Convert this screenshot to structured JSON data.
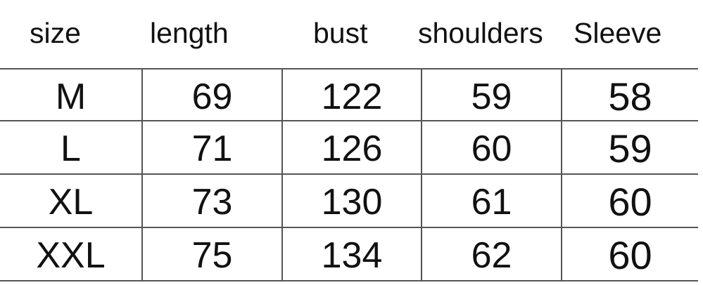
{
  "table": {
    "headers": [
      "size",
      "length",
      "bust",
      "shoulders",
      "Sleeve"
    ],
    "rows": [
      [
        "M",
        "69",
        "122",
        "59",
        "58"
      ],
      [
        "L",
        "71",
        "126",
        "60",
        "59"
      ],
      [
        "XL",
        "73",
        "130",
        "61",
        "60"
      ],
      [
        "XXL",
        "75",
        "134",
        "62",
        "60"
      ]
    ]
  }
}
